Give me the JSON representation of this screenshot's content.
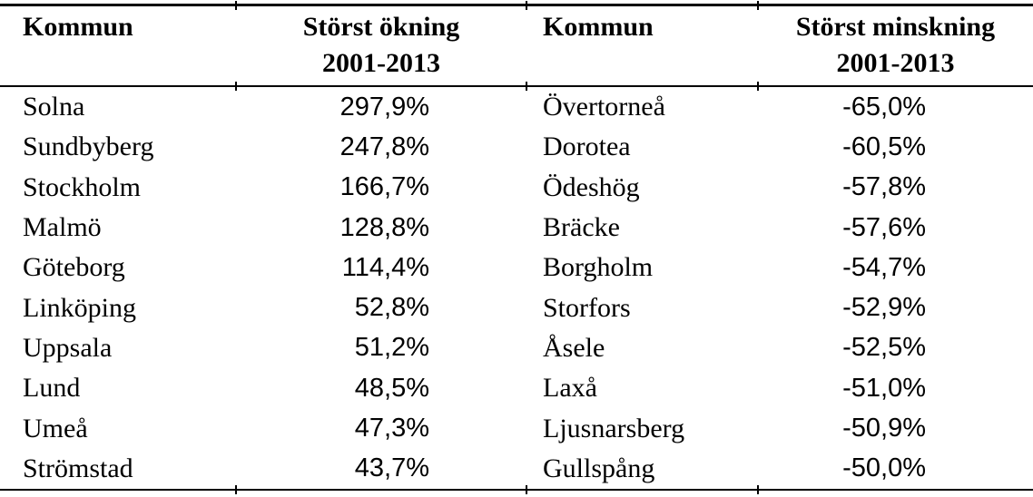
{
  "colors": {
    "background": "#ffffff",
    "text": "#000000",
    "rules": "#000000"
  },
  "table": {
    "headers": {
      "kommun_left": "Kommun",
      "increase_line1": "Störst ökning",
      "increase_line2": "2001-2013",
      "kommun_right": "Kommun",
      "decrease_line1": "Störst minskning",
      "decrease_line2": "2001-2013"
    },
    "rows": [
      {
        "kommun_okning": "Solna",
        "okning": "297,9%",
        "kommun_minskning": "Övertorneå",
        "minskning": "-65,0%"
      },
      {
        "kommun_okning": "Sundbyberg",
        "okning": "247,8%",
        "kommun_minskning": "Dorotea",
        "minskning": "-60,5%"
      },
      {
        "kommun_okning": "Stockholm",
        "okning": "166,7%",
        "kommun_minskning": "Ödeshög",
        "minskning": "-57,8%"
      },
      {
        "kommun_okning": "Malmö",
        "okning": "128,8%",
        "kommun_minskning": "Bräcke",
        "minskning": "-57,6%"
      },
      {
        "kommun_okning": "Göteborg",
        "okning": "114,4%",
        "kommun_minskning": "Borgholm",
        "minskning": "-54,7%"
      },
      {
        "kommun_okning": "Linköping",
        "okning": "52,8%",
        "kommun_minskning": "Storfors",
        "minskning": "-52,9%"
      },
      {
        "kommun_okning": "Uppsala",
        "okning": "51,2%",
        "kommun_minskning": "Åsele",
        "minskning": "-52,5%"
      },
      {
        "kommun_okning": "Lund",
        "okning": "48,5%",
        "kommun_minskning": "Laxå",
        "minskning": "-51,0%"
      },
      {
        "kommun_okning": "Umeå",
        "okning": "47,3%",
        "kommun_minskning": "Ljusnarsberg",
        "minskning": "-50,9%"
      },
      {
        "kommun_okning": "Strömstad",
        "okning": "43,7%",
        "kommun_minskning": "Gullspång",
        "minskning": "-50,0%"
      }
    ]
  }
}
